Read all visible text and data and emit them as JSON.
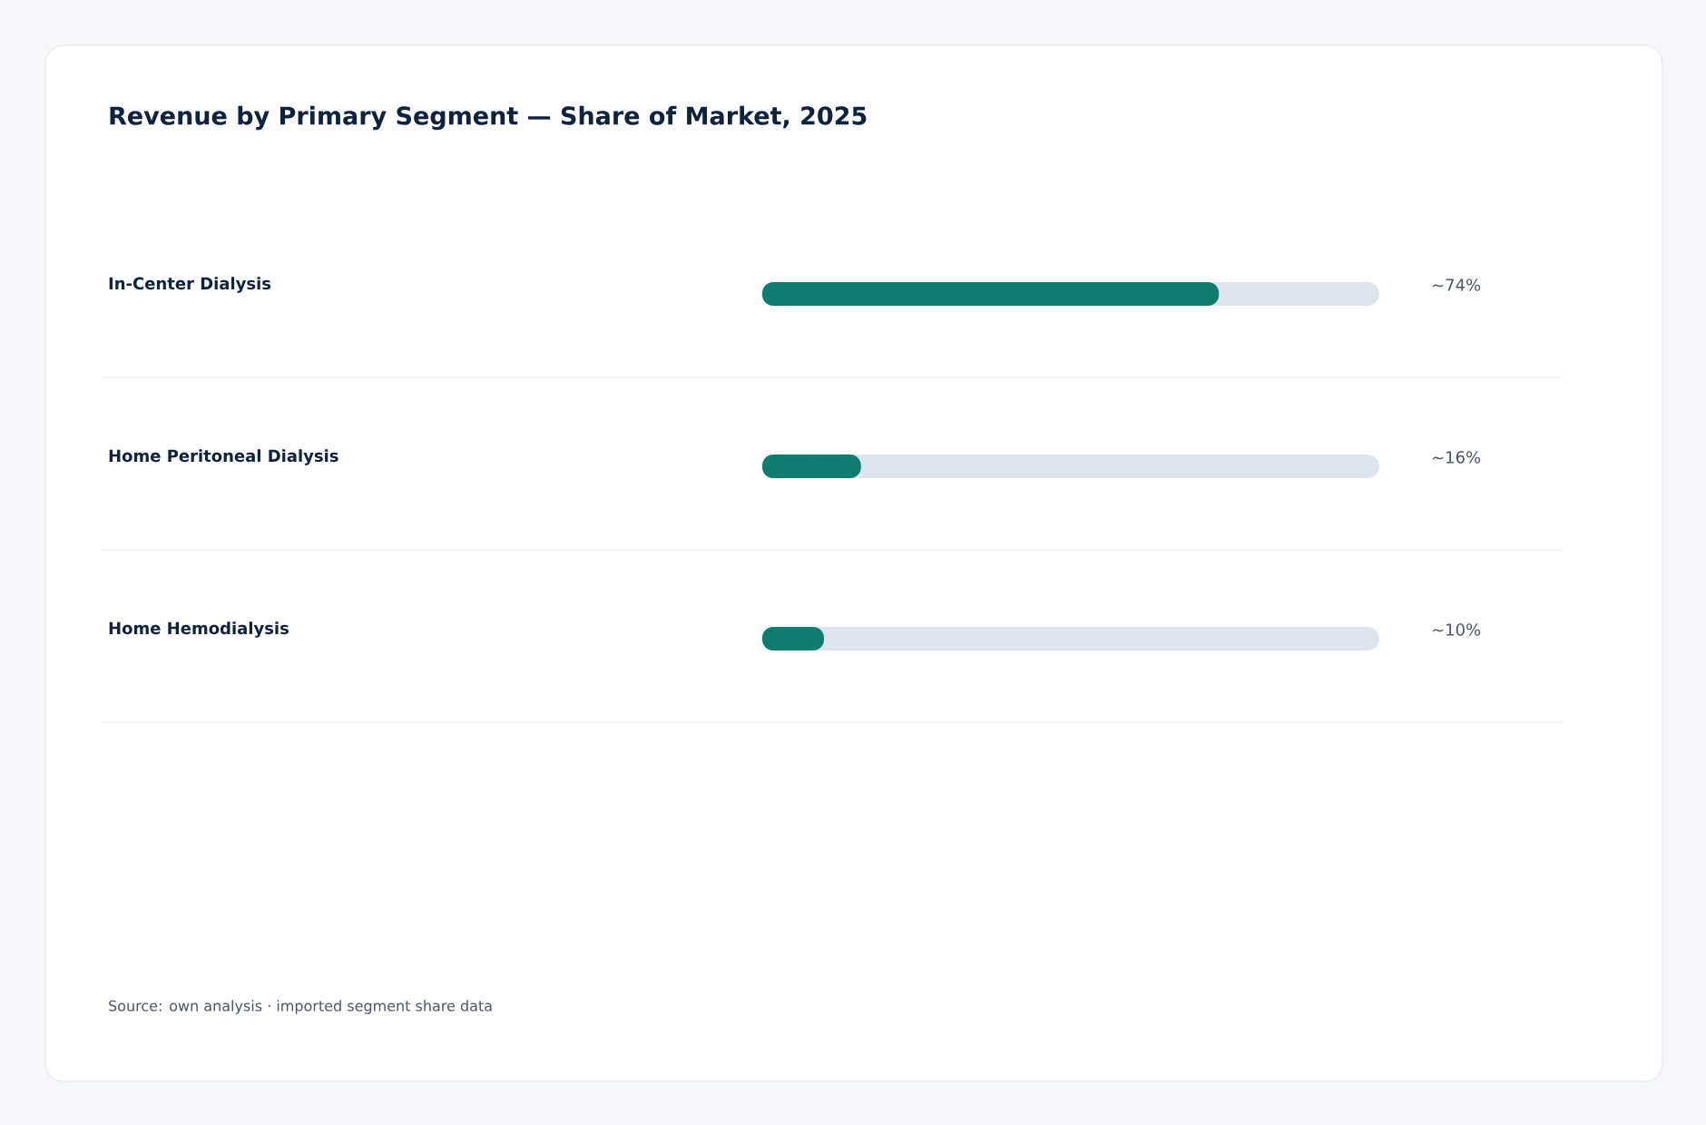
{
  "chart_data": {
    "type": "bar",
    "orientation": "horizontal",
    "title": "Revenue by Primary Segment — Share of Market, 2025",
    "categories": [
      "In-Center Dialysis",
      "Home Peritoneal Dialysis",
      "Home Hemodialysis"
    ],
    "values": [
      74,
      16,
      10
    ],
    "value_labels": [
      "~74%",
      "~16%",
      "~10%"
    ],
    "color": "#0e7c6e",
    "xlim": [
      0,
      100
    ],
    "annotations": [
      "Source: own analysis · imported segment share data"
    ]
  }
}
